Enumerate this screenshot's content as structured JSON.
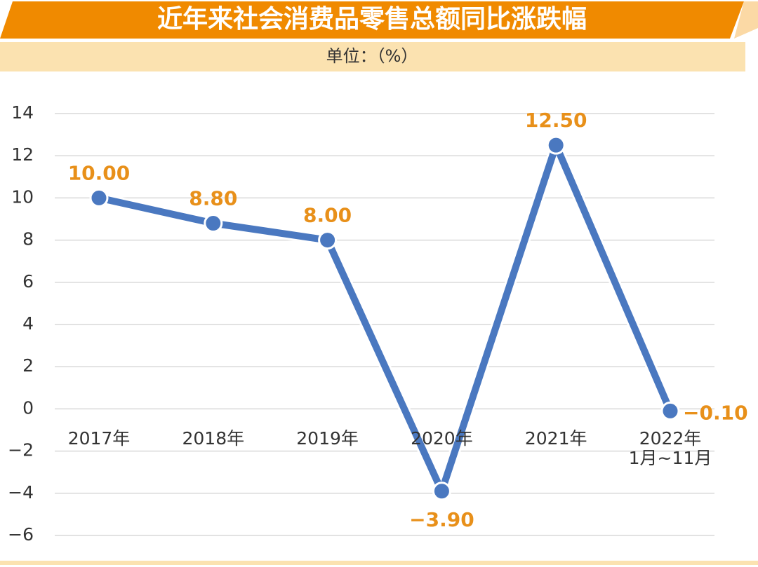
{
  "chart_data": {
    "type": "line",
    "title": "近年来社会消费品零售总额同比涨跌幅",
    "subtitle": "单位：（%）",
    "categories": [
      "2017年",
      "2018年",
      "2019年",
      "2020年",
      "2021年",
      "2022年\n1月~11月"
    ],
    "values": [
      10,
      8.8,
      8,
      -3.9,
      12.5,
      -0.1
    ],
    "value_labels": [
      "10.00",
      "8.80",
      "8.00",
      "−3.90",
      "12.50",
      "−0.10"
    ],
    "color": "#4a78c0",
    "label_color": "#e8901a",
    "ylim": [
      -6,
      14
    ],
    "yticks": [
      {
        "value": -6,
        "label": "−6"
      },
      {
        "value": -4,
        "label": "−4"
      },
      {
        "value": -2,
        "label": "−2"
      },
      0,
      2,
      4,
      6,
      8,
      10,
      12,
      14
    ],
    "grid": true
  }
}
